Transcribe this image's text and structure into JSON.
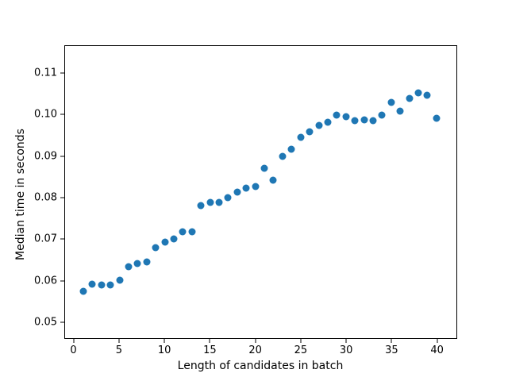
{
  "chart_data": {
    "type": "scatter",
    "title": "",
    "xlabel": "Length of candidates in batch",
    "ylabel": "Median time in seconds",
    "x": [
      1,
      2,
      3,
      4,
      5,
      6,
      7,
      8,
      9,
      10,
      11,
      12,
      13,
      14,
      15,
      16,
      17,
      18,
      19,
      20,
      21,
      22,
      23,
      24,
      25,
      26,
      27,
      28,
      29,
      30,
      31,
      32,
      33,
      34,
      35,
      36,
      37,
      38,
      39,
      40
    ],
    "y": [
      0.0573,
      0.059,
      0.0589,
      0.0589,
      0.0601,
      0.0633,
      0.064,
      0.0644,
      0.0679,
      0.0692,
      0.07,
      0.0718,
      0.0718,
      0.078,
      0.0788,
      0.0789,
      0.0801,
      0.0813,
      0.0823,
      0.0826,
      0.0871,
      0.0842,
      0.09,
      0.0918,
      0.0947,
      0.0959,
      0.0975,
      0.0983,
      0.0999,
      0.0996,
      0.0986,
      0.0989,
      0.0987,
      0.1,
      0.103,
      0.1009,
      0.104,
      0.1053,
      0.1048,
      0.0993
    ],
    "xlim": [
      -1.01,
      42.21
    ],
    "ylim": [
      0.046,
      0.1167
    ],
    "xticks": [
      0,
      5,
      10,
      15,
      20,
      25,
      30,
      35,
      40
    ],
    "xtick_labels": [
      "0",
      "5",
      "10",
      "15",
      "20",
      "25",
      "30",
      "35",
      "40"
    ],
    "yticks": [
      0.05,
      0.06,
      0.07,
      0.08,
      0.09,
      0.1,
      0.11
    ],
    "ytick_labels": [
      "0.05",
      "0.06",
      "0.07",
      "0.08",
      "0.09",
      "0.10",
      "0.11"
    ],
    "marker_color": "#1f77b4",
    "marker_diameter_px": 9,
    "grid": false,
    "legend": null,
    "background_color": "#ffffff",
    "spine_color": "#000000"
  }
}
